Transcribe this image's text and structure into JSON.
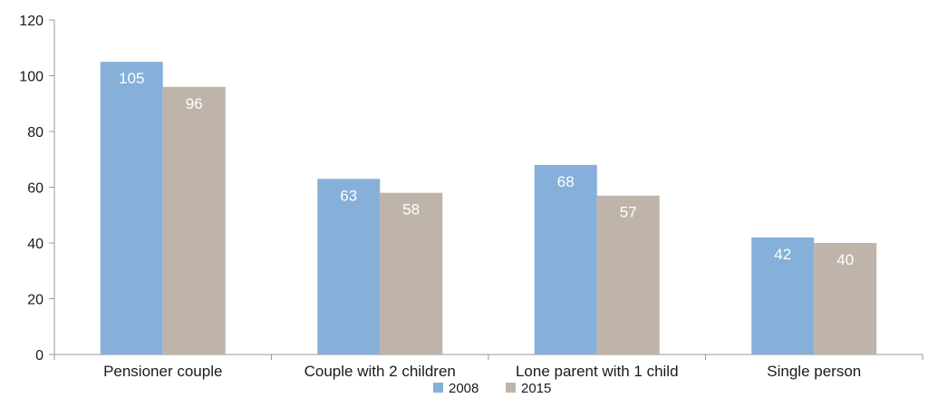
{
  "chart_data": {
    "type": "bar",
    "title": "",
    "xlabel": "",
    "ylabel": "",
    "categories": [
      "Pensioner couple",
      "Couple with 2 children",
      "Lone parent with 1 child",
      "Single person"
    ],
    "series": [
      {
        "name": "2008",
        "values": [
          105,
          63,
          68,
          42
        ],
        "color": "#86b0d9"
      },
      {
        "name": "2015",
        "values": [
          96,
          58,
          57,
          40
        ],
        "color": "#bfb4aa"
      }
    ],
    "ylim": [
      0,
      120
    ],
    "yticks": [
      0,
      20,
      40,
      60,
      80,
      100,
      120
    ],
    "grid": false,
    "legend": "bottom-center",
    "data_labels": true,
    "axis_color": "#999999"
  }
}
